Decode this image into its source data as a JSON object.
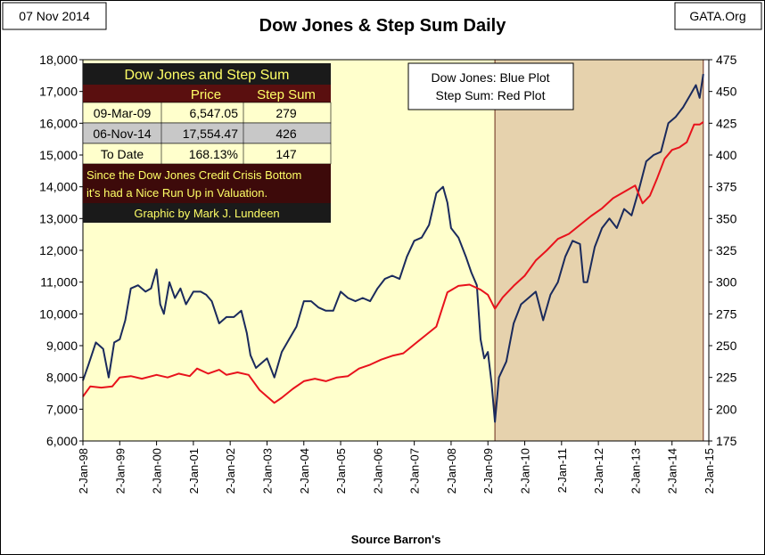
{
  "date_stamp": "07 Nov 2014",
  "source_tag": "GATA.Org",
  "footer": "Source Barron's",
  "chart_data": {
    "type": "line",
    "title": "Dow Jones & Step Sum Daily",
    "left_axis": {
      "min": 6000,
      "max": 18000,
      "step": 1000,
      "ticks": [
        "6,000",
        "7,000",
        "8,000",
        "9,000",
        "10,000",
        "11,000",
        "12,000",
        "13,000",
        "14,000",
        "15,000",
        "16,000",
        "17,000",
        "18,000"
      ]
    },
    "right_axis": {
      "min": 175,
      "max": 475,
      "step": 25,
      "ticks": [
        "175",
        "200",
        "225",
        "250",
        "275",
        "300",
        "325",
        "350",
        "375",
        "400",
        "425",
        "450",
        "475"
      ]
    },
    "x_range": [
      1998.0,
      2015.0
    ],
    "x_ticks": [
      "2-Jan-98",
      "2-Jan-99",
      "2-Jan-00",
      "2-Jan-01",
      "2-Jan-02",
      "2-Jan-03",
      "2-Jan-04",
      "2-Jan-05",
      "2-Jan-06",
      "2-Jan-07",
      "2-Jan-08",
      "2-Jan-09",
      "2-Jan-10",
      "2-Jan-11",
      "2-Jan-12",
      "2-Jan-13",
      "2-Jan-14",
      "2-Jan-15"
    ],
    "shaded_regions": [
      {
        "start": 1998.0,
        "end": 2009.19,
        "color": "#ffffcc"
      },
      {
        "start": 2009.19,
        "end": 2014.85,
        "color": "#e6d2ad"
      }
    ],
    "legend_box": [
      "Dow Jones: Blue Plot",
      "Step Sum: Red Plot"
    ],
    "series": [
      {
        "name": "Dow Jones",
        "axis": "left",
        "color": "#1a2a5c",
        "x": [
          1998.0,
          1998.15,
          1998.35,
          1998.55,
          1998.7,
          1998.85,
          1999.0,
          1999.15,
          1999.3,
          1999.5,
          1999.7,
          1999.85,
          2000.0,
          2000.1,
          2000.2,
          2000.35,
          2000.5,
          2000.65,
          2000.8,
          2001.0,
          2001.2,
          2001.35,
          2001.5,
          2001.7,
          2001.9,
          2002.1,
          2002.3,
          2002.45,
          2002.55,
          2002.7,
          2002.8,
          2003.0,
          2003.2,
          2003.4,
          2003.6,
          2003.8,
          2004.0,
          2004.2,
          2004.4,
          2004.6,
          2004.8,
          2005.0,
          2005.2,
          2005.4,
          2005.6,
          2005.8,
          2006.0,
          2006.2,
          2006.4,
          2006.6,
          2006.8,
          2007.0,
          2007.2,
          2007.4,
          2007.6,
          2007.78,
          2007.9,
          2008.0,
          2008.2,
          2008.4,
          2008.55,
          2008.7,
          2008.8,
          2008.9,
          2009.0,
          2009.1,
          2009.19,
          2009.3,
          2009.5,
          2009.7,
          2009.9,
          2010.1,
          2010.3,
          2010.5,
          2010.7,
          2010.9,
          2011.1,
          2011.3,
          2011.5,
          2011.6,
          2011.7,
          2011.9,
          2012.1,
          2012.3,
          2012.5,
          2012.7,
          2012.9,
          2013.1,
          2013.3,
          2013.5,
          2013.7,
          2013.9,
          2014.1,
          2014.3,
          2014.5,
          2014.65,
          2014.75,
          2014.85
        ],
        "y": [
          7900,
          8400,
          9100,
          8900,
          8000,
          9100,
          9200,
          9800,
          10800,
          10900,
          10700,
          10800,
          11400,
          10300,
          10000,
          11000,
          10500,
          10800,
          10300,
          10700,
          10700,
          10600,
          10400,
          9700,
          9900,
          9900,
          10100,
          9400,
          8700,
          8300,
          8400,
          8600,
          8000,
          8800,
          9200,
          9600,
          10400,
          10400,
          10200,
          10100,
          10100,
          10700,
          10500,
          10400,
          10500,
          10400,
          10800,
          11100,
          11200,
          11100,
          11800,
          12300,
          12400,
          12800,
          13800,
          14000,
          13500,
          12700,
          12400,
          11800,
          11300,
          10900,
          9200,
          8600,
          8800,
          7800,
          6600,
          8000,
          8500,
          9700,
          10300,
          10500,
          10700,
          9800,
          10600,
          11000,
          11800,
          12300,
          12200,
          11000,
          11000,
          12100,
          12700,
          13000,
          12700,
          13300,
          13100,
          13900,
          14800,
          15000,
          15100,
          16000,
          16200,
          16500,
          16900,
          17200,
          16800,
          17550
        ]
      },
      {
        "name": "Step Sum",
        "axis": "right",
        "color": "#e8121c",
        "x": [
          1998.0,
          1998.2,
          1998.5,
          1998.8,
          1999.0,
          1999.3,
          1999.6,
          2000.0,
          2000.3,
          2000.6,
          2000.9,
          2001.1,
          2001.4,
          2001.7,
          2001.9,
          2002.2,
          2002.5,
          2002.8,
          2003.0,
          2003.2,
          2003.4,
          2003.7,
          2004.0,
          2004.3,
          2004.6,
          2004.9,
          2005.2,
          2005.5,
          2005.8,
          2006.1,
          2006.4,
          2006.7,
          2007.0,
          2007.3,
          2007.6,
          2007.9,
          2008.2,
          2008.5,
          2008.8,
          2009.0,
          2009.19,
          2009.4,
          2009.7,
          2010.0,
          2010.3,
          2010.6,
          2010.9,
          2011.2,
          2011.5,
          2011.8,
          2012.1,
          2012.4,
          2012.7,
          2013.0,
          2013.2,
          2013.4,
          2013.6,
          2013.8,
          2014.0,
          2014.2,
          2014.4,
          2014.6,
          2014.75,
          2014.85
        ],
        "y": [
          210,
          218,
          217,
          218,
          225,
          226,
          224,
          227,
          225,
          228,
          226,
          232,
          228,
          231,
          227,
          229,
          227,
          215,
          210,
          205,
          209,
          216,
          222,
          224,
          222,
          225,
          226,
          232,
          235,
          239,
          242,
          244,
          251,
          258,
          265,
          292,
          297,
          298,
          294,
          290,
          279,
          288,
          297,
          305,
          317,
          325,
          334,
          338,
          345,
          352,
          358,
          366,
          371,
          376,
          362,
          368,
          382,
          397,
          404,
          406,
          410,
          424,
          424,
          426
        ]
      }
    ]
  },
  "info_table": {
    "title": "Dow Jones and Step Sum",
    "headers": [
      "",
      "Price",
      "Step Sum"
    ],
    "rows": [
      [
        "09-Mar-09",
        "6,547.05",
        "279"
      ],
      [
        "06-Nov-14",
        "17,554.47",
        "426"
      ],
      [
        "To Date",
        "168.13%",
        "147"
      ]
    ],
    "note": [
      "Since the Dow Jones Credit Crisis Bottom",
      "it's had a Nice Run Up in Valuation."
    ],
    "credit": "Graphic by Mark J. Lundeen"
  },
  "colors": {
    "plot_bg": "#ffffcc",
    "recent_bg": "#e6d2ad",
    "table_dark": "#1a1a1a",
    "table_head_red": "#5a0f0f",
    "table_yellow": "#ffff66",
    "table_row_light": "#ffffcc",
    "table_row_gray": "#c8c8c8",
    "note_bg": "#3d0a0a"
  }
}
